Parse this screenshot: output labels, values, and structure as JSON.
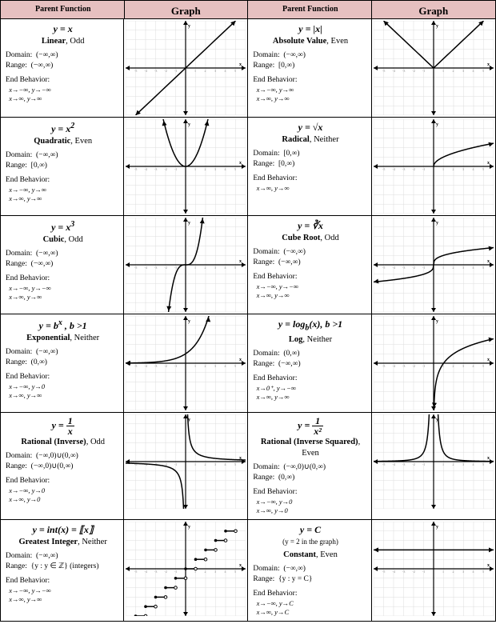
{
  "headers": [
    "Parent Function",
    "Graph",
    "Parent Function",
    "Graph"
  ],
  "header_bg": "#e6c0c0",
  "grid_color": "#dddddd",
  "axis_color": "#000000",
  "curve_color": "#000000",
  "graph": {
    "xmin": -6,
    "xmax": 6,
    "ymin": -5,
    "ymax": 5,
    "w": 150,
    "h": 118
  },
  "rows": [
    {
      "L": {
        "eq": "y = x",
        "name": "Linear",
        "sym": "Odd",
        "domain": "(−∞,∞)",
        "range": "(−∞,∞)",
        "eb": [
          "x→−∞, y→−∞",
          "x→∞,  y→∞"
        ],
        "curve": "linear"
      },
      "R": {
        "eq": "y = |x|",
        "name": "Absolute Value",
        "sym": "Even",
        "domain": "(−∞,∞)",
        "range": "[0,∞)",
        "eb": [
          "x→−∞, y→∞",
          "x→∞,  y→∞"
        ],
        "curve": "abs"
      }
    },
    {
      "L": {
        "eq": "y = x²",
        "name": "Quadratic",
        "sym": "Even",
        "domain": "(−∞,∞)",
        "range": "[0,∞)",
        "eb": [
          "x→−∞, y→∞",
          "x→∞,  y→∞"
        ],
        "curve": "quad"
      },
      "R": {
        "eq": "y = √x",
        "name": "Radical",
        "sym": "Neither",
        "domain": "[0,∞)",
        "range": "[0,∞)",
        "eb": [
          "x→∞,  y→∞"
        ],
        "curve": "sqrt"
      }
    },
    {
      "L": {
        "eq": "y = x³",
        "name": "Cubic",
        "sym": "Odd",
        "domain": "(−∞,∞)",
        "range": "(−∞,∞)",
        "eb": [
          "x→−∞, y→−∞",
          "x→∞,  y→∞"
        ],
        "curve": "cubic"
      },
      "R": {
        "eq": "y = ∛x",
        "name": "Cube Root",
        "sym": "Odd",
        "domain": "(−∞,∞)",
        "range": "(−∞,∞)",
        "eb": [
          "x→−∞, y→−∞",
          "x→∞,  y→∞"
        ],
        "curve": "cbrt"
      }
    },
    {
      "L": {
        "eq": "y = bˣ ,  b >1",
        "name": "Exponential",
        "sym": "Neither",
        "domain": "(−∞,∞)",
        "range": "(0,∞)",
        "eb": [
          "x→−∞, y→0",
          "x→∞,  y→∞"
        ],
        "curve": "exp"
      },
      "R": {
        "eq": "y = log_b(x),  b >1",
        "name": "Log",
        "sym": "Neither",
        "domain": "(0,∞)",
        "range": "(−∞,∞)",
        "eb": [
          "x→0⁺, y→−∞",
          "x→∞,  y→∞"
        ],
        "curve": "log"
      }
    },
    {
      "L": {
        "eq": "y = 1/x",
        "frac": [
          "1",
          "x"
        ],
        "name": "Rational (Inverse)",
        "sym": "Odd",
        "domain": "(−∞,0)∪(0,∞)",
        "range": "(−∞,0)∪(0,∞)",
        "eb": [
          "x→−∞, y→0",
          "x→∞,  y→0"
        ],
        "curve": "recip"
      },
      "R": {
        "eq": "y = 1/x²",
        "frac": [
          "1",
          "x²"
        ],
        "name": "Rational (Inverse Squared)",
        "sym": "Even",
        "domain": "(−∞,0)∪(0,∞)",
        "range": "(0,∞)",
        "eb": [
          "x→−∞, y→0",
          "x→∞,  y→0"
        ],
        "curve": "recip2"
      }
    },
    {
      "L": {
        "eq": "y = int(x) = ⟦x⟧",
        "name": "Greatest Integer",
        "sym": "Neither",
        "domain": "(−∞,∞)",
        "range_html": "{y : y ∈ ℤ} (integers)",
        "eb": [
          "x→−∞, y→−∞",
          "x→∞,  y→∞"
        ],
        "curve": "floor"
      },
      "R": {
        "eq": "y = C",
        "sub": "(y = 2 in the graph)",
        "name": "Constant",
        "sym": "Even",
        "domain": "(−∞,∞)",
        "range_html": "{y : y = C}",
        "eb": [
          "x→−∞, y→C",
          "x→∞,  y→C"
        ],
        "curve": "const"
      }
    }
  ]
}
